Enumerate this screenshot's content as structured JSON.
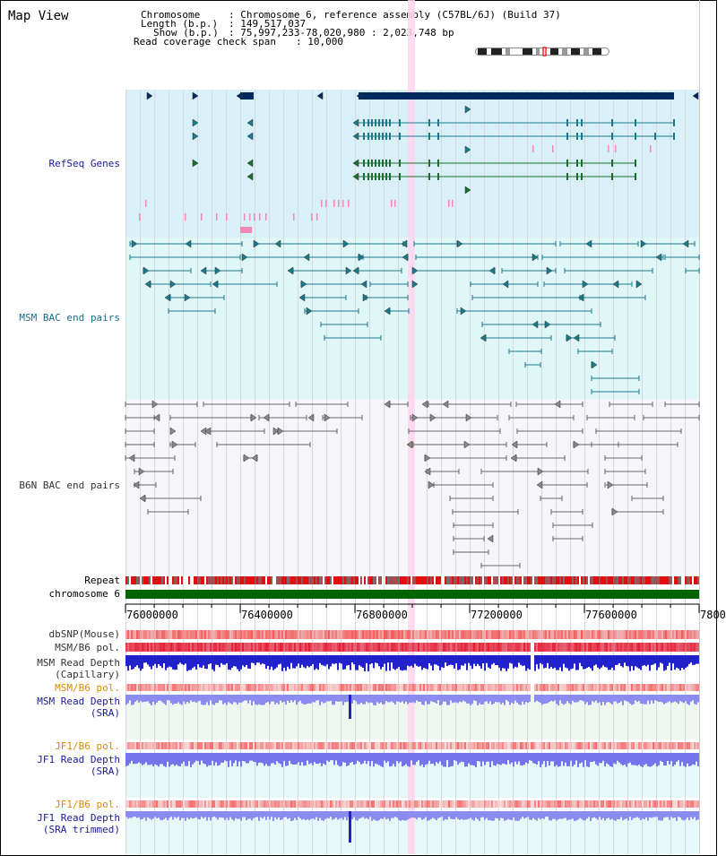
{
  "title": "Map View",
  "header": {
    "chromosome_key": "Chromosome",
    "chromosome_val": ": Chromosome 6, reference assembly (C57BL/6J) (Build 37)",
    "length_key": "Length (b.p.)",
    "length_val": ": 149,517,037",
    "show_key": "Show (b.p.)",
    "show_val": ": 75,997,233-78,020,980 : 2,023,748 bp",
    "coverage_key": "Read coverage check span",
    "coverage_val": ": 10,000"
  },
  "tracks": {
    "refseq": "RefSeq Genes",
    "msm_bac": "MSM BAC end pairs",
    "b6n_bac": "B6N BAC end pairs",
    "repeat": "Repeat",
    "chromosome": "chromosome 6",
    "dbsnp": "dbSNP(Mouse)",
    "msm_b6_pol_1": "MSM/B6 pol.",
    "msm_read_depth_cap": "MSM Read Depth\n(Capillary)",
    "msm_b6_pol_2": "MSM/B6 pol.",
    "msm_read_depth_sra": "MSM Read Depth\n(SRA)",
    "jf1_b6_pol_1": "JF1/B6 pol.",
    "jf1_read_depth_sra": "JF1 Read Depth\n(SRA)",
    "jf1_b6_pol_2": "JF1/B6 pol.",
    "jf1_read_depth_trim": "JF1 Read Depth\n(SRA trimmed)"
  },
  "axis": {
    "ticks": [
      "76000000",
      "76400000",
      "76800000",
      "77200000",
      "77600000",
      "7800"
    ]
  },
  "colors": {
    "refseq_bg": "#daf0f8",
    "msm_bg": "#e0f7f8",
    "b6n_bg": "#f5f5fa",
    "gene_navy": "#002a5e",
    "gene_teal": "#1a7a8c",
    "gene_green": "#1c6e2c",
    "chrom_green": "#006400",
    "highlight": "#ffd6f0",
    "label_blue": "#1a1aa0",
    "label_teal": "#1a6e8a",
    "label_orange": "#e08a00"
  }
}
